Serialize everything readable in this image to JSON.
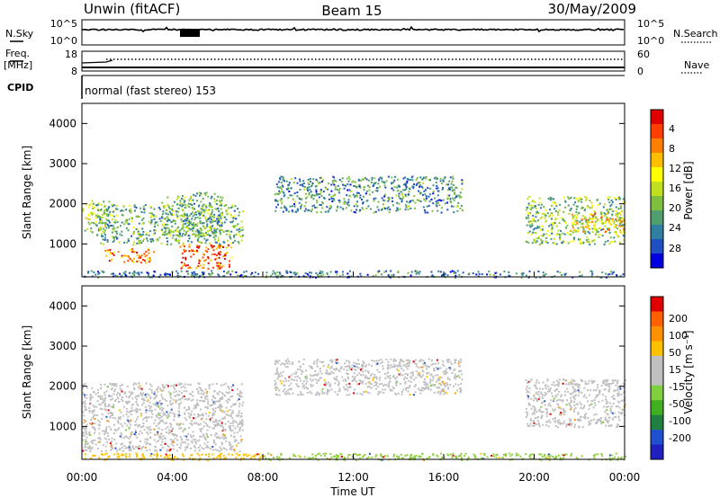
{
  "header": {
    "title": "Unwin (fitACF)",
    "beam": "Beam 15",
    "date": "30/May/2009"
  },
  "noise_panel": {
    "left_label": "N.Sky",
    "left_ticks": [
      "10^5",
      "10^0"
    ],
    "right_ticks": [
      "10^5",
      "10^0"
    ],
    "right_label": "N.Search"
  },
  "freq_panel": {
    "left_label": "Freq.",
    "left_unit": "[MHz]",
    "left_ticks": [
      "18",
      "8"
    ],
    "right_ticks": [
      "60",
      "0"
    ],
    "right_label": "Nave"
  },
  "cpid_panel": {
    "label": "CPID",
    "text": "normal (fast stereo) 153"
  },
  "time_axis": {
    "label": "Time UT",
    "ticks": [
      "00:00",
      "04:00",
      "08:00",
      "12:00",
      "16:00",
      "20:00",
      "00:00"
    ]
  },
  "chart_data": [
    {
      "type": "heatmap",
      "name": "power",
      "ylabel": "Slant Range [km]",
      "yticks": [
        "1000",
        "2000",
        "3000",
        "4000"
      ],
      "ylim": [
        180,
        4500
      ],
      "xlim_hours": [
        0,
        24
      ],
      "colorbar_label": "Power [dB]",
      "colorbar_ticks": [
        "4",
        "8",
        "12",
        "16",
        "20",
        "24",
        "28"
      ],
      "colorbar_colors": [
        "#0000e0",
        "#1f4fc0",
        "#2f7fa0",
        "#4f9f6f",
        "#7fbf3f",
        "#bfdf1f",
        "#ffff00",
        "#ffbf00",
        "#ff7f00",
        "#ff3f00",
        "#e00000"
      ],
      "regions": [
        {
          "hours": [
            0.0,
            1.2
          ],
          "range_km": [
            1300,
            2100
          ],
          "level": 0.45
        },
        {
          "hours": [
            0.6,
            7.1
          ],
          "range_km": [
            1000,
            2000
          ],
          "level": 0.35
        },
        {
          "hours": [
            1.0,
            3.2
          ],
          "range_km": [
            550,
            900
          ],
          "level": 0.8
        },
        {
          "hours": [
            4.3,
            6.6
          ],
          "range_km": [
            400,
            1000
          ],
          "level": 0.85
        },
        {
          "hours": [
            3.5,
            6.2
          ],
          "range_km": [
            1200,
            2300
          ],
          "level": 0.35
        },
        {
          "hours": [
            8.5,
            16.8
          ],
          "range_km": [
            1800,
            2700
          ],
          "level": 0.25
        },
        {
          "hours": [
            19.6,
            24.0
          ],
          "range_km": [
            1000,
            2200
          ],
          "level": 0.4
        },
        {
          "hours": [
            21.5,
            24.0
          ],
          "range_km": [
            1300,
            1800
          ],
          "level": 0.65
        },
        {
          "hours": [
            0.0,
            24.0
          ],
          "range_km": [
            180,
            350
          ],
          "level": 0.2
        }
      ]
    },
    {
      "type": "heatmap",
      "name": "velocity",
      "ylabel": "Slant Range [km]",
      "yticks": [
        "1000",
        "2000",
        "3000",
        "4000"
      ],
      "ylim": [
        180,
        4500
      ],
      "xlim_hours": [
        0,
        24
      ],
      "colorbar_label": "Velocity [m s⁻¹]",
      "colorbar_ticks": [
        "200",
        "100",
        "50",
        "15",
        "-15",
        "-50",
        "-100",
        "-200"
      ],
      "colorbar_colors": [
        "#2020c0",
        "#2050d0",
        "#208040",
        "#40b020",
        "#80d040",
        "#c0c0c0",
        "#c0c0c0",
        "#ffc000",
        "#ff9000",
        "#ff6000",
        "#e00000"
      ],
      "regions": [
        {
          "hours": [
            0.0,
            7.1
          ],
          "range_km": [
            400,
            2100
          ],
          "color": "#c0c0c0"
        },
        {
          "hours": [
            8.5,
            16.8
          ],
          "range_km": [
            1800,
            2700
          ],
          "color": "#c0c0c0"
        },
        {
          "hours": [
            19.6,
            24.0
          ],
          "range_km": [
            1000,
            2200
          ],
          "color": "#c0c0c0"
        },
        {
          "hours": [
            8.0,
            24.0
          ],
          "range_km": [
            180,
            350
          ],
          "color": "#90d040"
        },
        {
          "hours": [
            0.0,
            8.0
          ],
          "range_km": [
            180,
            350
          ],
          "color": "#ffc000"
        }
      ]
    }
  ]
}
